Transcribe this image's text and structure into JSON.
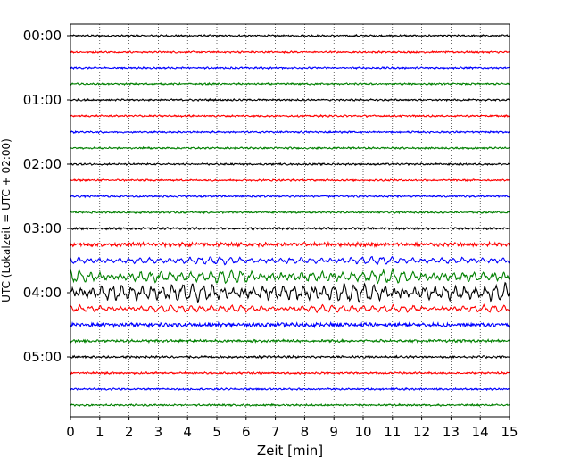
{
  "chart_data": {
    "type": "line",
    "title": "",
    "xlabel": "Zeit  [min]",
    "ylabel": "UTC (Lokalzeit = UTC + 02:00)",
    "xlim": [
      0,
      15
    ],
    "x_ticks": [
      0,
      1,
      2,
      3,
      4,
      5,
      6,
      7,
      8,
      9,
      10,
      11,
      12,
      13,
      14,
      15
    ],
    "y_tick_labels": [
      "00:00",
      "01:00",
      "02:00",
      "03:00",
      "04:00",
      "05:00"
    ],
    "trace_interval_min": 15,
    "trace_colors_cycle": [
      "#000000",
      "#ff0000",
      "#0000ff",
      "#008000"
    ],
    "grid": "vertical dotted at every minute",
    "traces": [
      {
        "start": "00:00",
        "color": "#000000",
        "amplitude": 0.25
      },
      {
        "start": "00:15",
        "color": "#ff0000",
        "amplitude": 0.25
      },
      {
        "start": "00:30",
        "color": "#0000ff",
        "amplitude": 0.25
      },
      {
        "start": "00:45",
        "color": "#008000",
        "amplitude": 0.25
      },
      {
        "start": "01:00",
        "color": "#000000",
        "amplitude": 0.25
      },
      {
        "start": "01:15",
        "color": "#ff0000",
        "amplitude": 0.25
      },
      {
        "start": "01:30",
        "color": "#0000ff",
        "amplitude": 0.25
      },
      {
        "start": "01:45",
        "color": "#008000",
        "amplitude": 0.25
      },
      {
        "start": "02:00",
        "color": "#000000",
        "amplitude": 0.25
      },
      {
        "start": "02:15",
        "color": "#ff0000",
        "amplitude": 0.25
      },
      {
        "start": "02:30",
        "color": "#0000ff",
        "amplitude": 0.25
      },
      {
        "start": "02:45",
        "color": "#008000",
        "amplitude": 0.25
      },
      {
        "start": "03:00",
        "color": "#000000",
        "amplitude": 0.3
      },
      {
        "start": "03:15",
        "color": "#ff0000",
        "amplitude": 0.55
      },
      {
        "start": "03:30",
        "color": "#0000ff",
        "amplitude": 0.9
      },
      {
        "start": "03:45",
        "color": "#008000",
        "amplitude": 1.5
      },
      {
        "start": "04:00",
        "color": "#000000",
        "amplitude": 2.2
      },
      {
        "start": "04:15",
        "color": "#ff0000",
        "amplitude": 0.9
      },
      {
        "start": "04:30",
        "color": "#0000ff",
        "amplitude": 0.55
      },
      {
        "start": "04:45",
        "color": "#008000",
        "amplitude": 0.35
      },
      {
        "start": "05:00",
        "color": "#000000",
        "amplitude": 0.3
      },
      {
        "start": "05:15",
        "color": "#ff0000",
        "amplitude": 0.28
      },
      {
        "start": "05:30",
        "color": "#0000ff",
        "amplitude": 0.25
      },
      {
        "start": "05:45",
        "color": "#008000",
        "amplitude": 0.25
      }
    ]
  }
}
